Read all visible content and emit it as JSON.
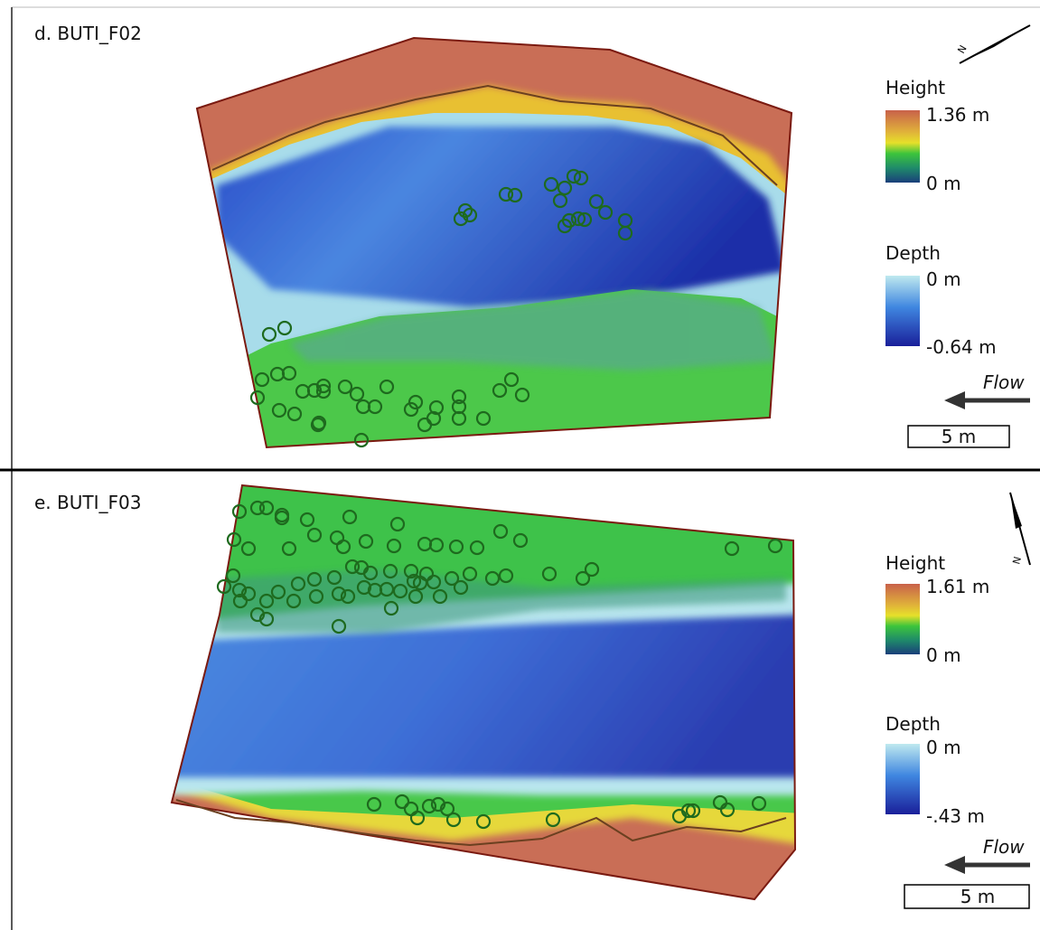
{
  "panels": [
    {
      "title": "d. BUTI_F02",
      "north": "N",
      "height_legend": {
        "title": "Height",
        "max": "1.36 m",
        "min": "0 m"
      },
      "depth_legend": {
        "title": "Depth",
        "max": "0 m",
        "min": "-0.64 m"
      },
      "flow": "Flow",
      "scale": "5 m"
    },
    {
      "title": "e. BUTI_F03",
      "north": "N",
      "height_legend": {
        "title": "Height",
        "max": "1.61 m",
        "min": "0 m"
      },
      "depth_legend": {
        "title": "Depth",
        "max": "0 m",
        "min": "-.43 m"
      },
      "flow": "Flow",
      "scale": "5 m"
    }
  ]
}
